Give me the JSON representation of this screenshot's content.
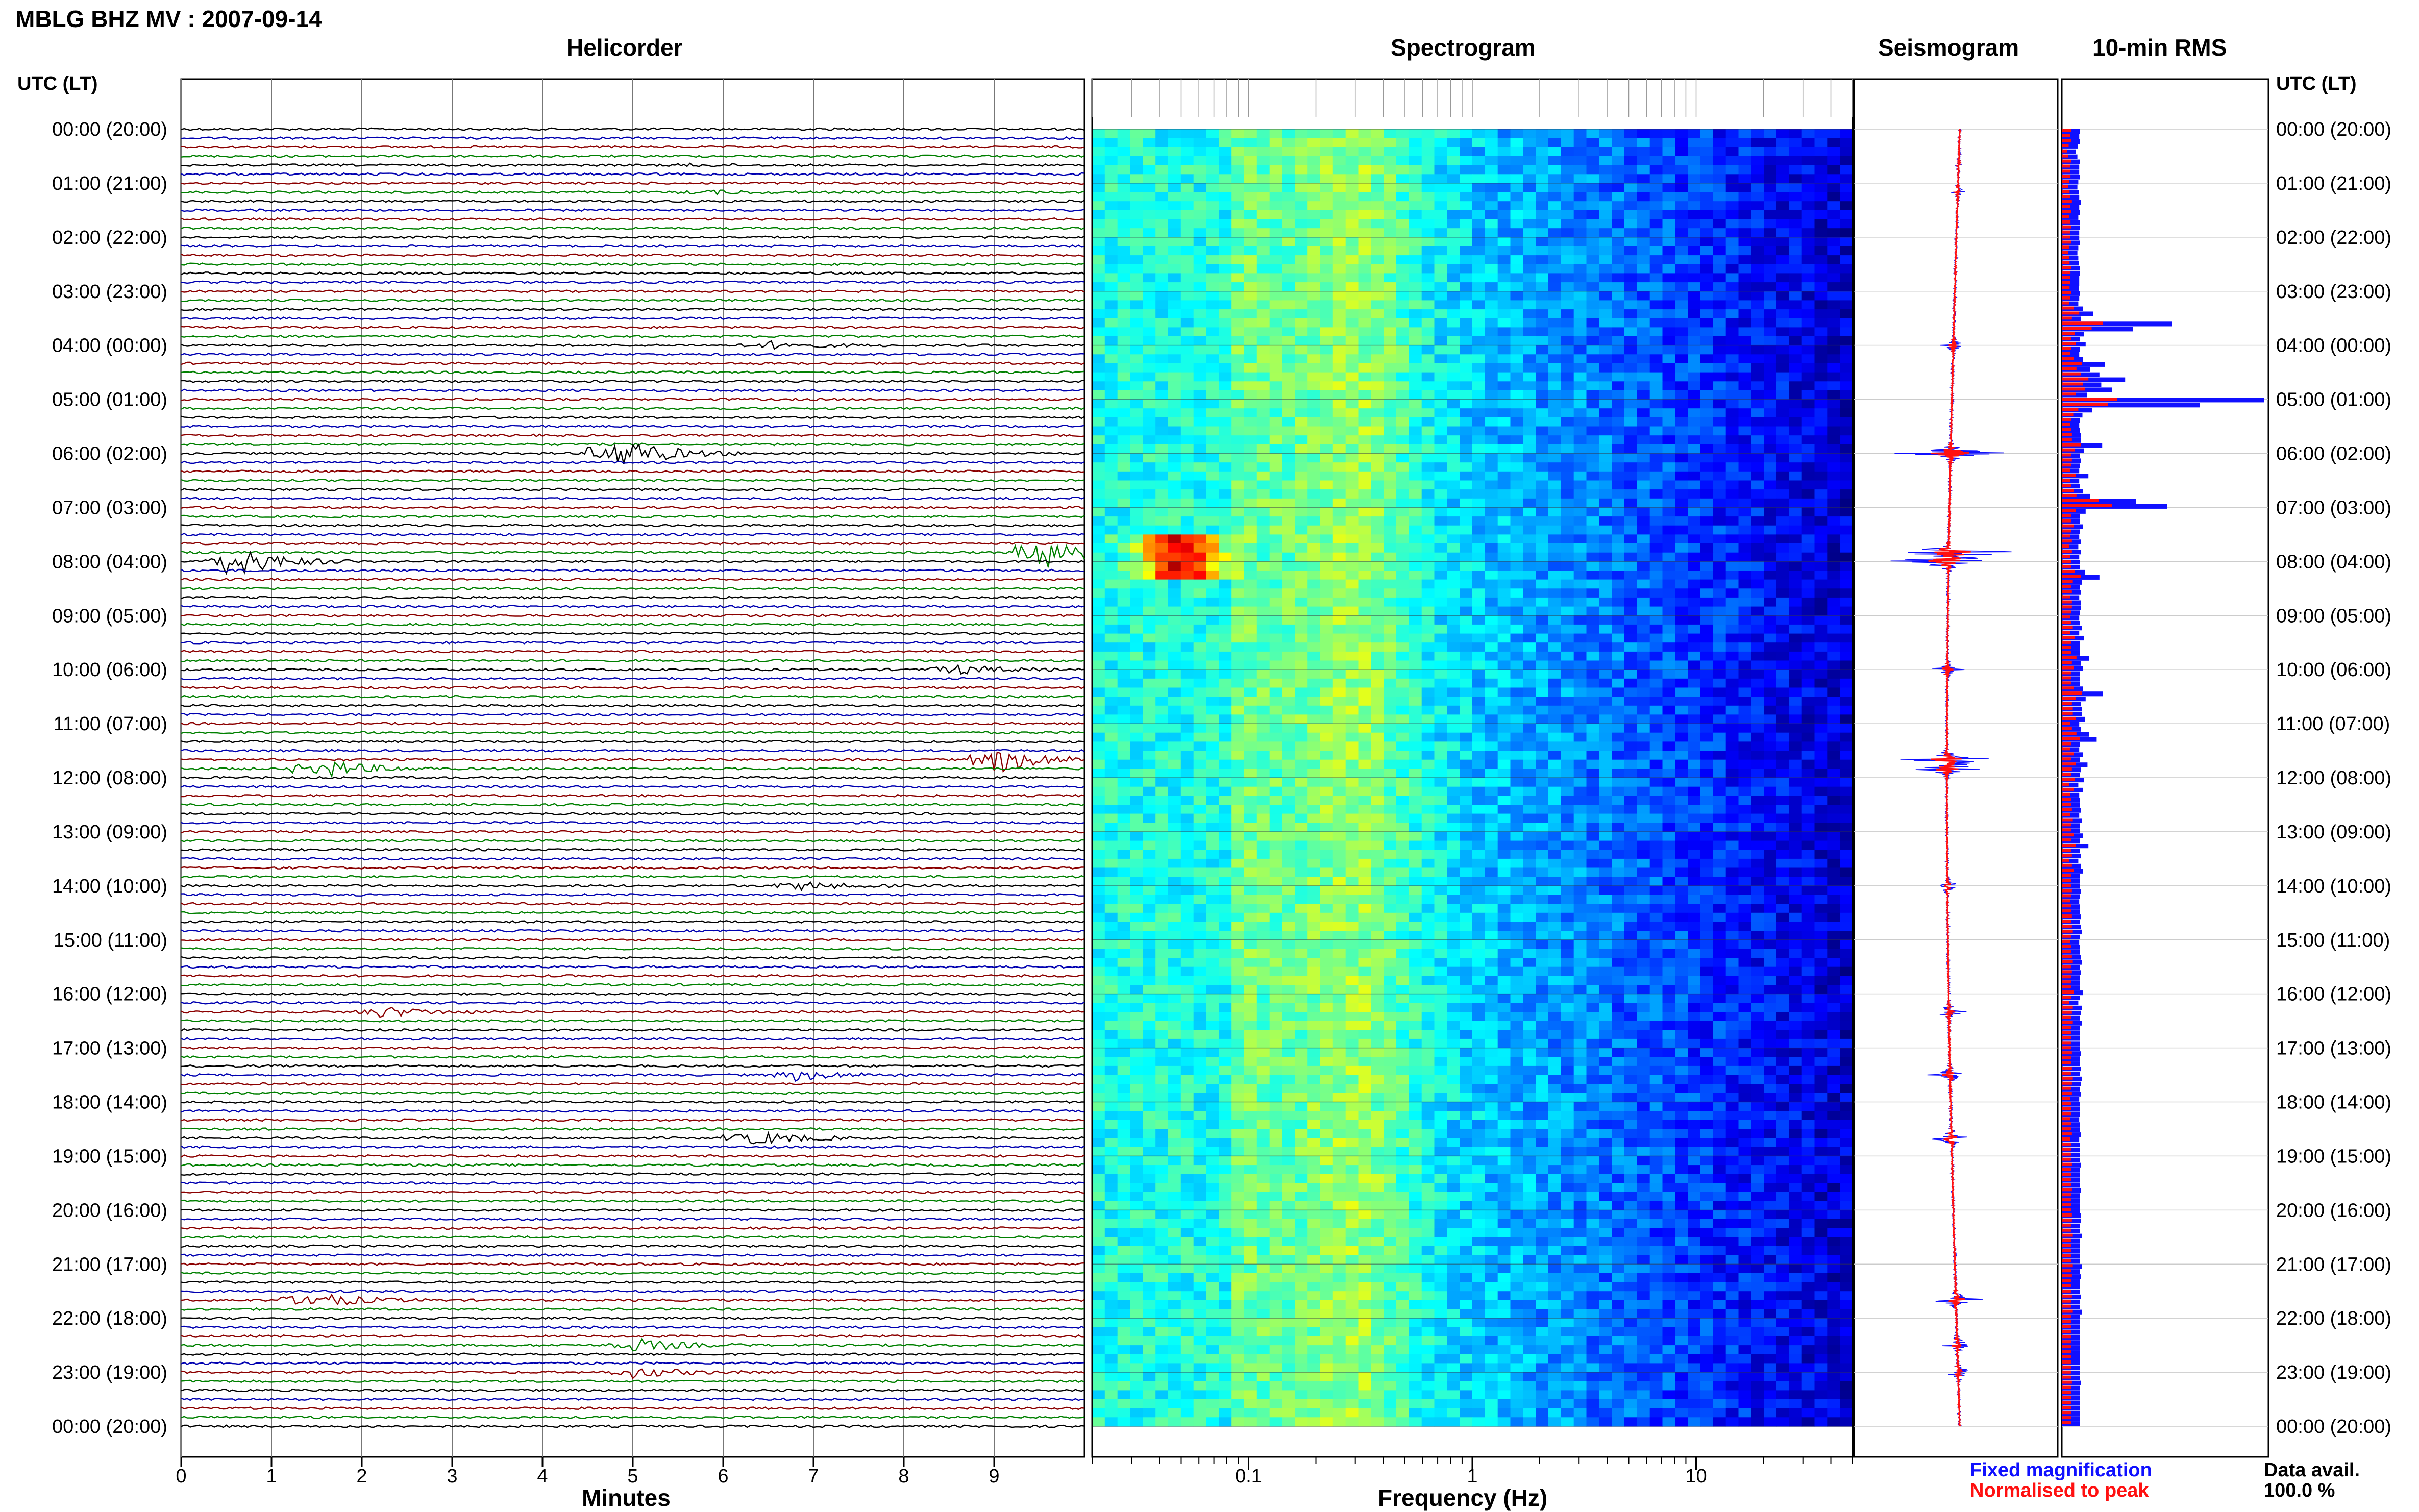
{
  "title": "MBLG BHZ MV : 2007-09-14",
  "time_axis_label": "UTC (LT)",
  "time_labels": [
    "00:00 (20:00)",
    "01:00 (21:00)",
    "02:00 (22:00)",
    "03:00 (23:00)",
    "04:00 (00:00)",
    "05:00 (01:00)",
    "06:00 (02:00)",
    "07:00 (03:00)",
    "08:00 (04:00)",
    "09:00 (05:00)",
    "10:00 (06:00)",
    "11:00 (07:00)",
    "12:00 (08:00)",
    "13:00 (09:00)",
    "14:00 (10:00)",
    "15:00 (11:00)",
    "16:00 (12:00)",
    "17:00 (13:00)",
    "18:00 (14:00)",
    "19:00 (15:00)",
    "20:00 (16:00)",
    "21:00 (17:00)",
    "22:00 (18:00)",
    "23:00 (19:00)",
    "00:00 (20:00)"
  ],
  "legend": {
    "fixed_label": "Fixed magnification",
    "fixed_color": "#1010ff",
    "peak_label": "Normalised to peak",
    "peak_color": "#ff1010",
    "data_avail_label": "Data avail.",
    "data_avail_value": "100.0 %"
  },
  "chart_data": [
    {
      "type": "line",
      "panel": "helicorder",
      "title": "Helicorder",
      "xlabel": "Minutes",
      "xlim": [
        0,
        10
      ],
      "x_ticks": [
        0,
        1,
        2,
        3,
        4,
        5,
        6,
        7,
        8,
        9
      ],
      "trace_colors": [
        "#000000",
        "#0000b0",
        "#8b0000",
        "#008000"
      ],
      "traces_per_hour": 6,
      "events": [
        {
          "time_utc": "00:40",
          "minute": 5.6,
          "amp": 0.3
        },
        {
          "time_utc": "01:10",
          "minute": 5.8,
          "amp": 0.5
        },
        {
          "time_utc": "04:00",
          "minute": 6.5,
          "amp": 1.0
        },
        {
          "time_utc": "06:00",
          "minute": 4.8,
          "amp": 5.0
        },
        {
          "time_utc": "07:50",
          "minute": 9.5,
          "amp": 6.0
        },
        {
          "time_utc": "08:00",
          "minute": 0.5,
          "amp": 5.0
        },
        {
          "time_utc": "10:00",
          "minute": 8.5,
          "amp": 1.5
        },
        {
          "time_utc": "11:40",
          "minute": 9.0,
          "amp": 4.0
        },
        {
          "time_utc": "11:50",
          "minute": 1.5,
          "amp": 3.0
        },
        {
          "time_utc": "14:00",
          "minute": 6.8,
          "amp": 1.2
        },
        {
          "time_utc": "16:20",
          "minute": 2.2,
          "amp": 1.5
        },
        {
          "time_utc": "17:30",
          "minute": 6.8,
          "amp": 1.5
        },
        {
          "time_utc": "18:40",
          "minute": 6.3,
          "amp": 2.0
        },
        {
          "time_utc": "21:40",
          "minute": 1.4,
          "amp": 2.5
        },
        {
          "time_utc": "22:30",
          "minute": 5.0,
          "amp": 1.8
        },
        {
          "time_utc": "23:00",
          "minute": 5.0,
          "amp": 1.5
        }
      ]
    },
    {
      "type": "heatmap",
      "panel": "spectrogram",
      "title": "Spectrogram",
      "xlabel": "Frequency (Hz)",
      "xscale": "log",
      "xlim": [
        0.02,
        50
      ],
      "x_tick_labels": [
        "0.1",
        "1",
        "10"
      ],
      "x_ticks": [
        0.1,
        1,
        10
      ],
      "colormap": "jet",
      "hot_spot": {
        "time_utc": "07:50",
        "freq_hz": 0.05
      }
    },
    {
      "type": "line",
      "panel": "seismogram",
      "title": "Seismogram",
      "series": [
        {
          "name": "Fixed magnification",
          "color": "#1010ff"
        },
        {
          "name": "Normalised to peak",
          "color": "#ff1010"
        }
      ]
    },
    {
      "type": "bar",
      "panel": "rms",
      "title": "10-min RMS",
      "orientation": "horizontal",
      "fixed_values": [
        0.4,
        0.38,
        0.4,
        0.35,
        0.3,
        0.34,
        0.4,
        0.38,
        0.38,
        0.39,
        0.36,
        0.34,
        0.37,
        0.38,
        0.42,
        0.38,
        0.4,
        0.36,
        0.39,
        0.4,
        0.38,
        0.38,
        0.4,
        0.36,
        0.34,
        0.36,
        0.37,
        0.4,
        0.39,
        0.38,
        0.38,
        0.37,
        0.4,
        0.38,
        0.36,
        0.46,
        0.68,
        0.42,
        2.4,
        1.55,
        0.48,
        0.4,
        0.52,
        0.4,
        0.38,
        0.46,
        0.94,
        0.62,
        0.82,
        1.38,
        0.86,
        1.1,
        0.55,
        4.4,
        3.0,
        0.66,
        0.45,
        0.4,
        0.38,
        0.4,
        0.42,
        0.42,
        0.88,
        0.48,
        0.4,
        0.42,
        0.4,
        0.38,
        0.58,
        0.38,
        0.4,
        0.46,
        0.62,
        1.62,
        2.3,
        0.52,
        0.4,
        0.4,
        0.46,
        0.4,
        0.38,
        0.42,
        0.36,
        0.42,
        0.38,
        0.4,
        0.4,
        0.5,
        0.82,
        0.44,
        0.4,
        0.42,
        0.38,
        0.42,
        0.42,
        0.4,
        0.38,
        0.4,
        0.44,
        0.38,
        0.48,
        0.4,
        0.4,
        0.4,
        0.6,
        0.42,
        0.46,
        0.4,
        0.4,
        0.4,
        0.46,
        0.9,
        0.52,
        0.42,
        0.44,
        0.44,
        0.5,
        0.38,
        0.42,
        0.6,
        0.76,
        0.4,
        0.38,
        0.46,
        0.4,
        0.56,
        0.42,
        0.4,
        0.48,
        0.36,
        0.46,
        0.38,
        0.4,
        0.4,
        0.42,
        0.38,
        0.44,
        0.4,
        0.4,
        0.46,
        0.4,
        0.58,
        0.4,
        0.42,
        0.36,
        0.42,
        0.46,
        0.4,
        0.4,
        0.4,
        0.42,
        0.4,
        0.38,
        0.4,
        0.4,
        0.42,
        0.4,
        0.42,
        0.44,
        0.4,
        0.38,
        0.4,
        0.4,
        0.42,
        0.44,
        0.4,
        0.42,
        0.4,
        0.4,
        0.4,
        0.46,
        0.4,
        0.36,
        0.44,
        0.42,
        0.4,
        0.44,
        0.4,
        0.4,
        0.4,
        0.4,
        0.4,
        0.42,
        0.4,
        0.4,
        0.42,
        0.4,
        0.44,
        0.42,
        0.4,
        0.42,
        0.38,
        0.4,
        0.4,
        0.4,
        0.38,
        0.4,
        0.4,
        0.42,
        0.38,
        0.4,
        0.4,
        0.4,
        0.4,
        0.42,
        0.4,
        0.4,
        0.4,
        0.4,
        0.42,
        0.4,
        0.4,
        0.4,
        0.4,
        0.42,
        0.42,
        0.4,
        0.4,
        0.44,
        0.4,
        0.4,
        0.4,
        0.4,
        0.4,
        0.44,
        0.4,
        0.42,
        0.4,
        0.4,
        0.4,
        0.42,
        0.4,
        0.4,
        0.44,
        0.4,
        0.4,
        0.4,
        0.4,
        0.4,
        0.4,
        0.4,
        0.4,
        0.4,
        0.4,
        0.4,
        0.4,
        0.4,
        0.42,
        0.4,
        0.4,
        0.4,
        0.4,
        0.4,
        0.4,
        0.4,
        0.4
      ],
      "peak_values": [
        0.2,
        0.18,
        0.2,
        0.15,
        0.12,
        0.14,
        0.2,
        0.18,
        0.18,
        0.19,
        0.16,
        0.14,
        0.17,
        0.18,
        0.22,
        0.18,
        0.2,
        0.16,
        0.19,
        0.2,
        0.18,
        0.18,
        0.2,
        0.16,
        0.14,
        0.16,
        0.17,
        0.2,
        0.19,
        0.18,
        0.18,
        0.17,
        0.2,
        0.18,
        0.16,
        0.26,
        0.38,
        0.22,
        0.9,
        0.65,
        0.28,
        0.2,
        0.3,
        0.2,
        0.18,
        0.26,
        0.44,
        0.32,
        0.42,
        0.58,
        0.46,
        0.5,
        0.3,
        1.2,
        1.0,
        0.36,
        0.25,
        0.2,
        0.18,
        0.2,
        0.22,
        0.22,
        0.42,
        0.28,
        0.2,
        0.22,
        0.2,
        0.18,
        0.3,
        0.18,
        0.2,
        0.26,
        0.32,
        0.8,
        1.1,
        0.3,
        0.2,
        0.2,
        0.26,
        0.2,
        0.18,
        0.22,
        0.16,
        0.22,
        0.18,
        0.2,
        0.2,
        0.28,
        0.42,
        0.24,
        0.2,
        0.22,
        0.18,
        0.22,
        0.22,
        0.2,
        0.18,
        0.2,
        0.24,
        0.18,
        0.28,
        0.2,
        0.2,
        0.2,
        0.32,
        0.22,
        0.26,
        0.2,
        0.2,
        0.2,
        0.26,
        0.44,
        0.3,
        0.22,
        0.24,
        0.24,
        0.3,
        0.18,
        0.22,
        0.32,
        0.4,
        0.2,
        0.18,
        0.26,
        0.2,
        0.3,
        0.22,
        0.2,
        0.28,
        0.16,
        0.26,
        0.18,
        0.2,
        0.2,
        0.22,
        0.18,
        0.24,
        0.2,
        0.2,
        0.26,
        0.2,
        0.3,
        0.2,
        0.22,
        0.16,
        0.22,
        0.26,
        0.2,
        0.2,
        0.2,
        0.22,
        0.2,
        0.18,
        0.2,
        0.2,
        0.22,
        0.2,
        0.22,
        0.24,
        0.2,
        0.18,
        0.2,
        0.2,
        0.22,
        0.24,
        0.2,
        0.22,
        0.2,
        0.2,
        0.2,
        0.26,
        0.2,
        0.16,
        0.24,
        0.22,
        0.2,
        0.24,
        0.2,
        0.2,
        0.2,
        0.2,
        0.2,
        0.22,
        0.2,
        0.2,
        0.22,
        0.2,
        0.24,
        0.22,
        0.2,
        0.22,
        0.18,
        0.2,
        0.2,
        0.2,
        0.18,
        0.2,
        0.2,
        0.22,
        0.18,
        0.2,
        0.2,
        0.2,
        0.2,
        0.22,
        0.2,
        0.2,
        0.2,
        0.2,
        0.22,
        0.2,
        0.2,
        0.2,
        0.2,
        0.22,
        0.22,
        0.2,
        0.2,
        0.24,
        0.2,
        0.2,
        0.2,
        0.2,
        0.2,
        0.24,
        0.2,
        0.22,
        0.2,
        0.2,
        0.2,
        0.22,
        0.2,
        0.2,
        0.24,
        0.2,
        0.2,
        0.2,
        0.2,
        0.2,
        0.2,
        0.2,
        0.2,
        0.2,
        0.2,
        0.2,
        0.2,
        0.2,
        0.22,
        0.2,
        0.2,
        0.2,
        0.2,
        0.2,
        0.2,
        0.2,
        0.2
      ]
    }
  ]
}
